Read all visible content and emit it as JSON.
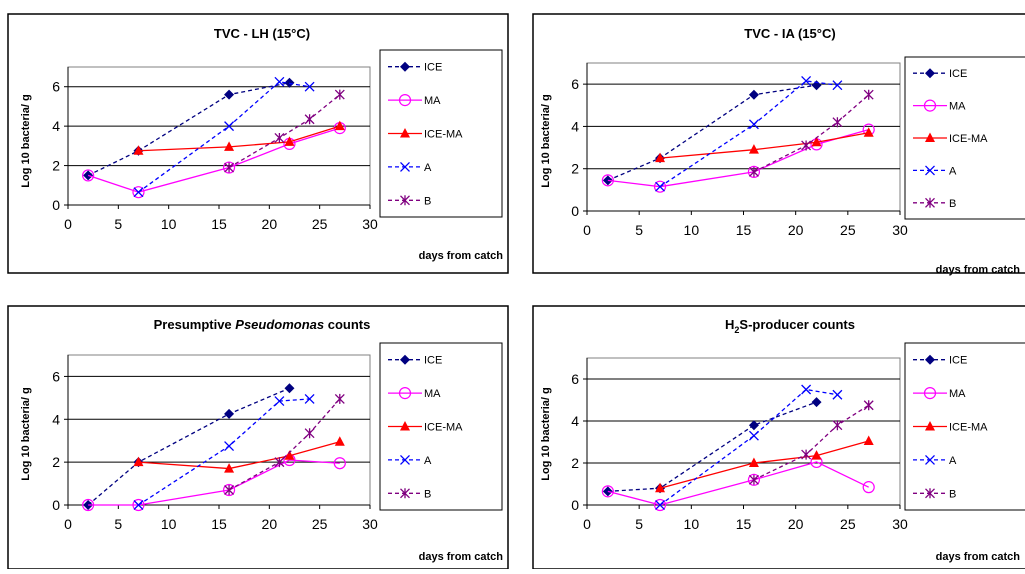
{
  "chart_data": [
    {
      "type": "line",
      "title": "TVC - LH (15°C)",
      "ylabel": "Log 10 bacteria/ g",
      "xlabel": "days from catch",
      "xlim": [
        0,
        30
      ],
      "ylim": [
        0,
        7
      ],
      "xticks": [
        0,
        5,
        10,
        15,
        20,
        25,
        30
      ],
      "yticks": [
        0,
        2,
        4,
        6
      ],
      "grid": "horizontal",
      "legend_position": "right",
      "series": [
        {
          "name": "ICE",
          "color": "#000080",
          "dash": "dashed",
          "marker": "diamond",
          "x": [
            2,
            7,
            16,
            22
          ],
          "y": [
            1.5,
            2.75,
            5.6,
            6.2
          ]
        },
        {
          "name": "MA",
          "color": "#ff00ff",
          "dash": "solid",
          "marker": "circle",
          "x": [
            2,
            7,
            16,
            22,
            27
          ],
          "y": [
            1.5,
            0.65,
            1.9,
            3.1,
            3.9
          ]
        },
        {
          "name": "ICE-MA",
          "color": "#ff0000",
          "dash": "solid",
          "marker": "triangle",
          "x": [
            7,
            16,
            22,
            27
          ],
          "y": [
            2.75,
            2.95,
            3.2,
            4.0
          ]
        },
        {
          "name": "A",
          "color": "#0000ff",
          "dash": "dashed",
          "marker": "x",
          "x": [
            7,
            16,
            21,
            24
          ],
          "y": [
            0.65,
            4.0,
            6.25,
            6.0
          ]
        },
        {
          "name": "B",
          "color": "#800080",
          "dash": "dashed",
          "marker": "star",
          "x": [
            16,
            21,
            24,
            27
          ],
          "y": [
            1.9,
            3.4,
            4.35,
            5.6
          ]
        }
      ]
    },
    {
      "type": "line",
      "title": "TVC - IA (15°C)",
      "ylabel": "Log 10 bacteria/ g",
      "xlabel": "days from catch",
      "xlim": [
        0,
        30
      ],
      "ylim": [
        0,
        7
      ],
      "xticks": [
        0,
        5,
        10,
        15,
        20,
        25,
        30
      ],
      "yticks": [
        0,
        2,
        4,
        6
      ],
      "grid": "horizontal",
      "legend_position": "right",
      "series": [
        {
          "name": "ICE",
          "color": "#000080",
          "dash": "dashed",
          "marker": "diamond",
          "x": [
            2,
            7,
            16,
            22
          ],
          "y": [
            1.45,
            2.5,
            5.5,
            5.95
          ]
        },
        {
          "name": "MA",
          "color": "#ff00ff",
          "dash": "solid",
          "marker": "circle",
          "x": [
            2,
            7,
            16,
            22,
            27
          ],
          "y": [
            1.45,
            1.15,
            1.85,
            3.15,
            3.85
          ]
        },
        {
          "name": "ICE-MA",
          "color": "#ff0000",
          "dash": "solid",
          "marker": "triangle",
          "x": [
            7,
            16,
            22,
            27
          ],
          "y": [
            2.5,
            2.9,
            3.25,
            3.7
          ]
        },
        {
          "name": "A",
          "color": "#0000ff",
          "dash": "dashed",
          "marker": "x",
          "x": [
            7,
            16,
            21,
            24
          ],
          "y": [
            1.15,
            4.1,
            6.15,
            5.95
          ]
        },
        {
          "name": "B",
          "color": "#800080",
          "dash": "dashed",
          "marker": "star",
          "x": [
            16,
            21,
            24,
            27
          ],
          "y": [
            1.85,
            3.1,
            4.2,
            5.5
          ]
        }
      ]
    },
    {
      "type": "line",
      "title": "Presumptive Pseudomonas counts",
      "title_parts": [
        "Presumptive ",
        "Pseudomonas",
        "  counts"
      ],
      "ylabel": "Log 10 bacteria/ g",
      "xlabel": "days from catch",
      "xlim": [
        0,
        30
      ],
      "ylim": [
        0,
        7
      ],
      "xticks": [
        0,
        5,
        10,
        15,
        20,
        25,
        30
      ],
      "yticks": [
        0,
        2,
        4,
        6
      ],
      "grid": "horizontal",
      "legend_position": "right",
      "series": [
        {
          "name": "ICE",
          "color": "#000080",
          "dash": "dashed",
          "marker": "diamond",
          "x": [
            2,
            7,
            16,
            22
          ],
          "y": [
            0.0,
            2.0,
            4.25,
            5.45
          ]
        },
        {
          "name": "MA",
          "color": "#ff00ff",
          "dash": "solid",
          "marker": "circle",
          "x": [
            2,
            7,
            16,
            22,
            27
          ],
          "y": [
            0.0,
            0.0,
            0.7,
            2.1,
            1.95
          ]
        },
        {
          "name": "ICE-MA",
          "color": "#ff0000",
          "dash": "solid",
          "marker": "triangle",
          "x": [
            7,
            16,
            22,
            27
          ],
          "y": [
            2.0,
            1.7,
            2.3,
            2.95
          ]
        },
        {
          "name": "A",
          "color": "#0000ff",
          "dash": "dashed",
          "marker": "x",
          "x": [
            7,
            16,
            21,
            24
          ],
          "y": [
            0.0,
            2.75,
            4.85,
            4.95
          ]
        },
        {
          "name": "B",
          "color": "#800080",
          "dash": "dashed",
          "marker": "star",
          "x": [
            16,
            21,
            24,
            27
          ],
          "y": [
            0.7,
            2.0,
            3.35,
            4.95
          ]
        }
      ]
    },
    {
      "type": "line",
      "title": "H2S-producer counts",
      "title_parts": [
        "H",
        "2",
        "S-producer counts"
      ],
      "ylabel": "Log 10 bacteria/ g",
      "xlabel": "days from catch",
      "xlim": [
        0,
        30
      ],
      "ylim": [
        0,
        7
      ],
      "xticks": [
        0,
        5,
        10,
        15,
        20,
        25,
        30
      ],
      "yticks": [
        0,
        2,
        4,
        6
      ],
      "grid": "horizontal",
      "legend_position": "right",
      "series": [
        {
          "name": "ICE",
          "color": "#000080",
          "dash": "dashed",
          "marker": "diamond",
          "x": [
            2,
            7,
            16,
            22
          ],
          "y": [
            0.65,
            0.8,
            3.8,
            4.9
          ]
        },
        {
          "name": "MA",
          "color": "#ff00ff",
          "dash": "solid",
          "marker": "circle",
          "x": [
            2,
            7,
            16,
            22,
            27
          ],
          "y": [
            0.65,
            0.0,
            1.2,
            2.05,
            0.85
          ]
        },
        {
          "name": "ICE-MA",
          "color": "#ff0000",
          "dash": "solid",
          "marker": "triangle",
          "x": [
            7,
            16,
            22,
            27
          ],
          "y": [
            0.8,
            2.0,
            2.35,
            3.05
          ]
        },
        {
          "name": "A",
          "color": "#0000ff",
          "dash": "dashed",
          "marker": "x",
          "x": [
            7,
            16,
            21,
            24
          ],
          "y": [
            0.0,
            3.3,
            5.5,
            5.25
          ]
        },
        {
          "name": "B",
          "color": "#800080",
          "dash": "dashed",
          "marker": "star",
          "x": [
            16,
            21,
            24,
            27
          ],
          "y": [
            1.2,
            2.4,
            3.8,
            4.75
          ]
        }
      ]
    }
  ]
}
